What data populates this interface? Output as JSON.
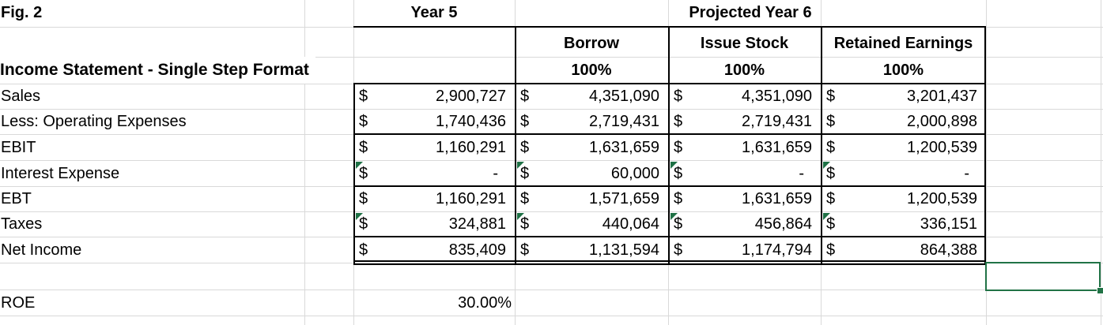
{
  "figure_label": "Fig. 2",
  "statement_title": "Income Statement - Single Step Format",
  "currency": "$",
  "header": {
    "year5_label": "Year 5",
    "projected_label": "Projected Year 6",
    "scenarios": [
      {
        "name": "Borrow",
        "pct": "100%"
      },
      {
        "name": "Issue Stock",
        "pct": "100%"
      },
      {
        "name": "Retained Earnings",
        "pct": "100%"
      }
    ]
  },
  "table": {
    "rows": [
      {
        "label": "Sales",
        "flagged": false,
        "values": [
          "2,900,727",
          "4,351,090",
          "4,351,090",
          "3,201,437"
        ]
      },
      {
        "label": "Less: Operating Expenses",
        "flagged": false,
        "values": [
          "1,740,436",
          "2,719,431",
          "2,719,431",
          "2,000,898"
        ]
      },
      {
        "label": "EBIT",
        "flagged": false,
        "values": [
          "1,160,291",
          "1,631,659",
          "1,631,659",
          "1,200,539"
        ]
      },
      {
        "label": "Interest Expense",
        "flagged": true,
        "values": [
          "-",
          "60,000",
          "-",
          "-"
        ]
      },
      {
        "label": "EBT",
        "flagged": false,
        "values": [
          "1,160,291",
          "1,571,659",
          "1,631,659",
          "1,200,539"
        ]
      },
      {
        "label": "Taxes",
        "flagged": true,
        "values": [
          "324,881",
          "440,064",
          "456,864",
          "336,151"
        ]
      },
      {
        "label": "Net Income",
        "flagged": false,
        "values": [
          "835,409",
          "1,131,594",
          "1,174,794",
          "864,388"
        ]
      }
    ]
  },
  "roe": {
    "label": "ROE",
    "value": "30.00%"
  },
  "colors": {
    "selection_green": "#217346",
    "error_indicator_green": "#1e7145",
    "gridline_gray": "#d9d9d9",
    "table_border_black": "#000000"
  }
}
